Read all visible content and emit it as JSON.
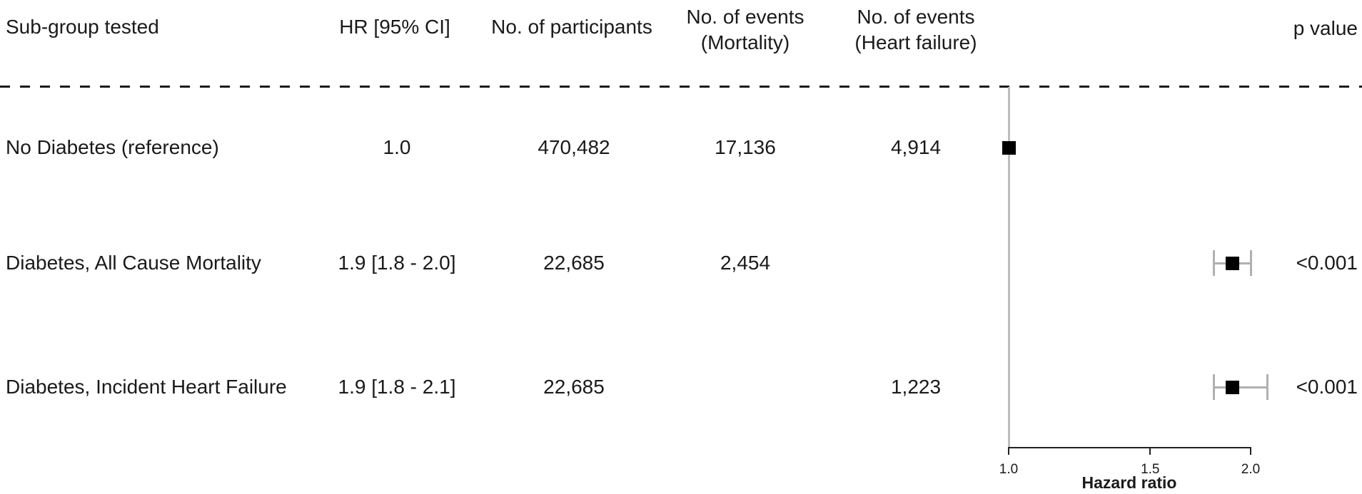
{
  "header": {
    "subgroup": "Sub-group tested",
    "hr_ci": "HR [95% CI]",
    "participants": "No. of participants",
    "events_line1": "No. of events",
    "events_mortality_line2": "(Mortality)",
    "events_hf_line2": "(Heart failure)",
    "p_value": "p value"
  },
  "rows": [
    {
      "subgroup": "No Diabetes (reference)",
      "hr_ci": "1.0",
      "participants": "470,482",
      "events_mortality": "17,136",
      "events_hf": "4,914",
      "p_value": ""
    },
    {
      "subgroup": "Diabetes, All Cause Mortality",
      "hr_ci": "1.9 [1.8 - 2.0]",
      "participants": "22,685",
      "events_mortality": "2,454",
      "events_hf": "",
      "p_value": "<0.001"
    },
    {
      "subgroup": "Diabetes, Incident Heart Failure",
      "hr_ci": "1.9 [1.8 - 2.1]",
      "participants": "22,685",
      "events_mortality": "",
      "events_hf": "1,223",
      "p_value": "<0.001"
    }
  ],
  "chart_data": {
    "type": "scatter",
    "subtype": "forest-plot",
    "xlabel": "Hazard ratio",
    "x_scale": "log",
    "xlim": [
      1.0,
      2.0
    ],
    "x_ticks": [
      1.0,
      1.5,
      2.0
    ],
    "reference_line_x": 1.0,
    "points": [
      {
        "label": "No Diabetes (reference)",
        "hr": 1.0,
        "ci_low": null,
        "ci_high": null,
        "p_value": null
      },
      {
        "label": "Diabetes, All Cause Mortality",
        "hr": 1.9,
        "ci_low": 1.8,
        "ci_high": 2.0,
        "p_value": "<0.001"
      },
      {
        "label": "Diabetes, Incident Heart Failure",
        "hr": 1.9,
        "ci_low": 1.8,
        "ci_high": 2.1,
        "p_value": "<0.001"
      }
    ]
  },
  "colors": {
    "text": "#1a1a1a",
    "marker": "#000000",
    "ci_whisker": "#b0b0b0",
    "reference_line": "#bdbdbd",
    "axis": "#222222"
  }
}
